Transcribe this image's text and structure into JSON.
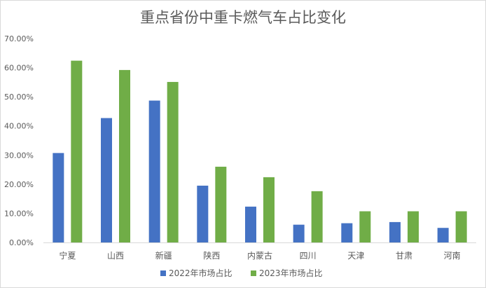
{
  "chart_data": {
    "type": "bar",
    "title": "重点省份中重卡燃气车占比变化",
    "categories": [
      "宁夏",
      "山西",
      "新疆",
      "陕西",
      "内蒙古",
      "四川",
      "天津",
      "甘肃",
      "河南"
    ],
    "series": [
      {
        "name": "2022年市场占比",
        "color": "#4472C4",
        "values": [
          30.7,
          42.7,
          48.7,
          19.5,
          12.3,
          6.1,
          6.6,
          7.0,
          5.0
        ]
      },
      {
        "name": "2023年市场占比",
        "color": "#70AD47",
        "values": [
          62.4,
          59.2,
          55.1,
          26.0,
          22.4,
          17.6,
          10.7,
          10.7,
          10.7
        ]
      }
    ],
    "yticks": [
      "0.00%",
      "10.00%",
      "20.00%",
      "30.00%",
      "40.00%",
      "50.00%",
      "60.00%",
      "70.00%"
    ],
    "ylim": [
      0,
      70
    ],
    "xlabel": "",
    "ylabel": "",
    "grid": false,
    "legend_position": "bottom"
  }
}
